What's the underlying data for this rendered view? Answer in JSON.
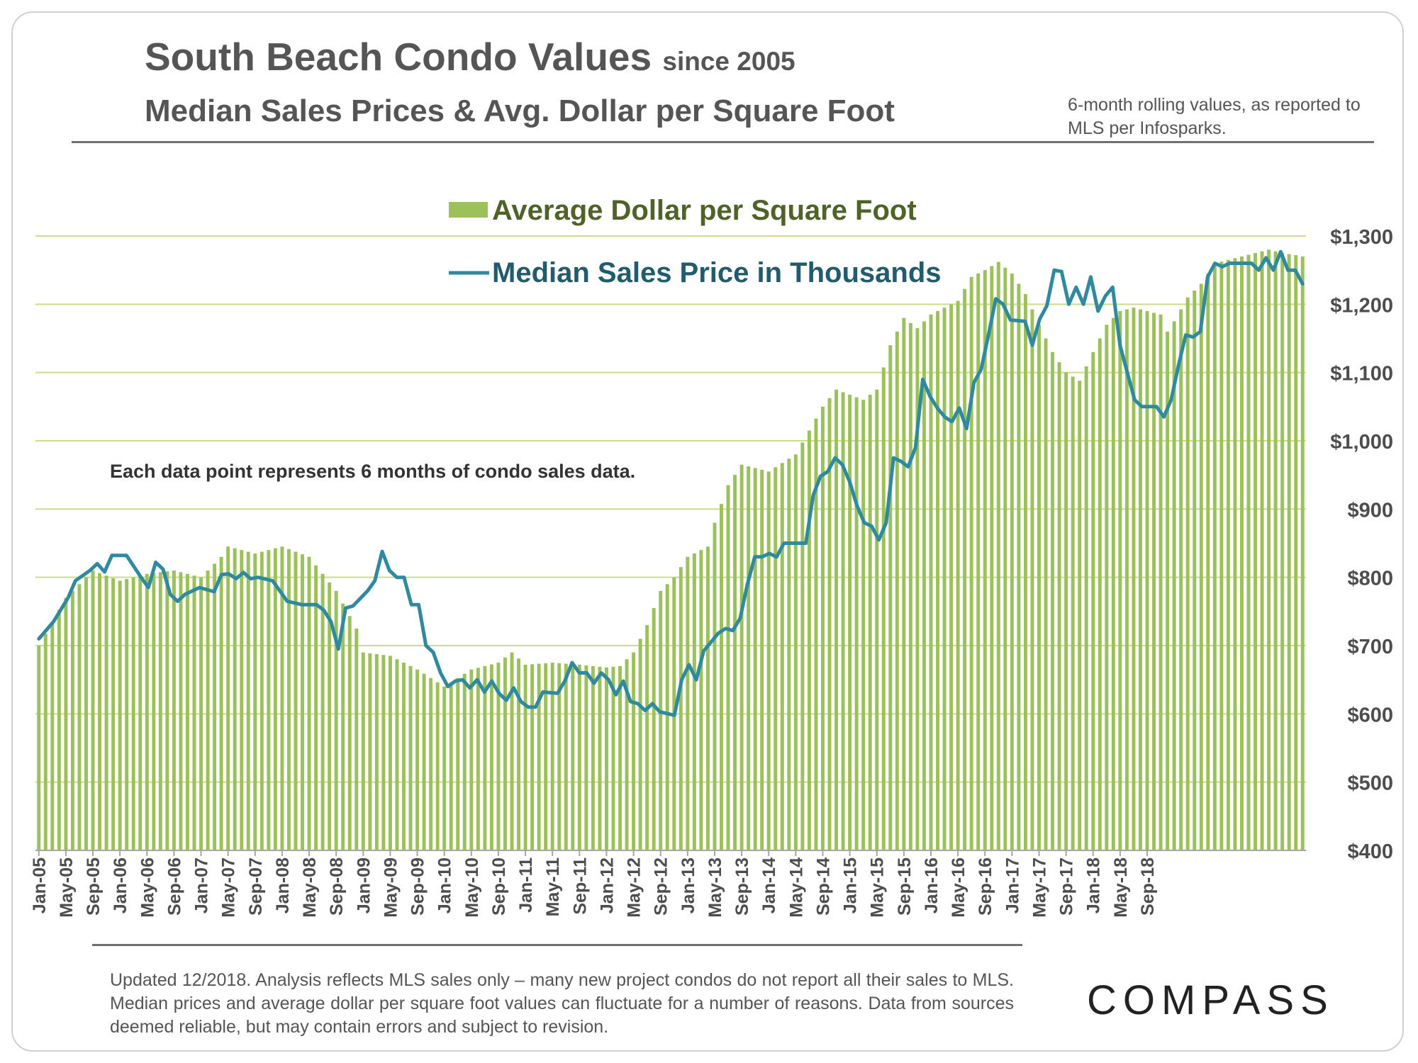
{
  "header": {
    "title_main": "South Beach Condo Values",
    "title_since": "since 2005",
    "subtitle": "Median Sales Prices & Avg. Dollar per Square Foot",
    "note": "6-month rolling values, as reported to MLS per Infosparks."
  },
  "annotation": "Each data point represents 6 months of condo sales data.",
  "footer": "Updated 12/2018. Analysis reflects MLS sales only – many new project condos do not report all their sales to MLS. Median prices and average dollar per square foot values can fluctuate for a number of reasons. Data from sources deemed reliable, but may contain errors and subject to revision.",
  "logo": "COMPASS",
  "colors": {
    "bar": "#9dc15a",
    "line": "#2f8aa0",
    "grid": "#c8de8e",
    "legend_bar_text": "#4f6228",
    "legend_line_text": "#215b6e"
  },
  "chart_data": {
    "type": "bar+line",
    "x_labels": [
      "Jan-05",
      "May-05",
      "Sep-05",
      "Jan-06",
      "May-06",
      "Sep-06",
      "Jan-07",
      "May-07",
      "Sep-07",
      "Jan-08",
      "May-08",
      "Sep-08",
      "Jan-09",
      "May-09",
      "Sep-09",
      "Jan-10",
      "May-10",
      "Sep-10",
      "Jan-11",
      "May-11",
      "Sep-11",
      "Jan-12",
      "May-12",
      "Sep-12",
      "Jan-13",
      "May-13",
      "Sep-13",
      "Jan-14",
      "May-14",
      "Sep-14",
      "Jan-15",
      "May-15",
      "Sep-15",
      "Jan-16",
      "May-16",
      "Sep-16",
      "Jan-17",
      "May-17",
      "Sep-17",
      "Jan-18",
      "May-18",
      "Sep-18"
    ],
    "x_label_interval_months": 4,
    "y_axis": {
      "min": 400,
      "max": 1300,
      "step": 100,
      "position": "right",
      "ticks": [
        "$400",
        "$500",
        "$600",
        "$700",
        "$800",
        "$900",
        "$1,000",
        "$1,100",
        "$1,200",
        "$1,300"
      ]
    },
    "series": [
      {
        "name": "Average Dollar per Square Foot",
        "kind": "bar",
        "anchors": [
          [
            0,
            700
          ],
          [
            4,
            770
          ],
          [
            8,
            810
          ],
          [
            12,
            795
          ],
          [
            16,
            805
          ],
          [
            20,
            810
          ],
          [
            24,
            800
          ],
          [
            27,
            830
          ],
          [
            28,
            845
          ],
          [
            32,
            835
          ],
          [
            36,
            845
          ],
          [
            40,
            830
          ],
          [
            44,
            780
          ],
          [
            47,
            725
          ],
          [
            48,
            690
          ],
          [
            52,
            685
          ],
          [
            56,
            665
          ],
          [
            60,
            640
          ],
          [
            64,
            665
          ],
          [
            68,
            675
          ],
          [
            70,
            690
          ],
          [
            72,
            672
          ],
          [
            76,
            675
          ],
          [
            80,
            672
          ],
          [
            84,
            668
          ],
          [
            86,
            670
          ],
          [
            88,
            690
          ],
          [
            90,
            730
          ],
          [
            92,
            780
          ],
          [
            94,
            800
          ],
          [
            96,
            830
          ],
          [
            99,
            845
          ],
          [
            100,
            880
          ],
          [
            102,
            935
          ],
          [
            104,
            965
          ],
          [
            108,
            955
          ],
          [
            112,
            980
          ],
          [
            116,
            1050
          ],
          [
            118,
            1075
          ],
          [
            122,
            1060
          ],
          [
            124,
            1075
          ],
          [
            126,
            1140
          ],
          [
            128,
            1180
          ],
          [
            130,
            1165
          ],
          [
            132,
            1185
          ],
          [
            136,
            1205
          ],
          [
            138,
            1240
          ],
          [
            140,
            1250
          ],
          [
            142,
            1262
          ],
          [
            144,
            1245
          ],
          [
            146,
            1215
          ],
          [
            148,
            1170
          ],
          [
            150,
            1130
          ],
          [
            152,
            1100
          ],
          [
            154,
            1088
          ],
          [
            156,
            1130
          ],
          [
            158,
            1170
          ],
          [
            160,
            1190
          ],
          [
            162,
            1195
          ],
          [
            166,
            1185
          ],
          [
            167,
            1160
          ],
          [
            168,
            1175
          ],
          [
            170,
            1210
          ],
          [
            172,
            1230
          ],
          [
            174,
            1260
          ],
          [
            176,
            1265
          ],
          [
            178,
            1270
          ],
          [
            180,
            1275
          ],
          [
            182,
            1280
          ],
          [
            184,
            1275
          ],
          [
            186,
            1272
          ],
          [
            187,
            1270
          ]
        ]
      },
      {
        "name": "Median Sales Price in Thousands",
        "kind": "line",
        "anchors": [
          [
            0,
            710
          ],
          [
            2,
            735
          ],
          [
            4,
            770
          ],
          [
            5,
            795
          ],
          [
            7,
            810
          ],
          [
            8,
            820
          ],
          [
            9,
            808
          ],
          [
            10,
            832
          ],
          [
            12,
            832
          ],
          [
            14,
            800
          ],
          [
            15,
            785
          ],
          [
            16,
            822
          ],
          [
            17,
            812
          ],
          [
            18,
            775
          ],
          [
            19,
            765
          ],
          [
            20,
            775
          ],
          [
            22,
            785
          ],
          [
            24,
            779
          ],
          [
            25,
            804
          ],
          [
            26,
            805
          ],
          [
            27,
            798
          ],
          [
            28,
            807
          ],
          [
            29,
            798
          ],
          [
            30,
            800
          ],
          [
            32,
            795
          ],
          [
            34,
            765
          ],
          [
            36,
            760
          ],
          [
            38,
            760
          ],
          [
            39,
            752
          ],
          [
            40,
            735
          ],
          [
            41,
            695
          ],
          [
            42,
            755
          ],
          [
            43,
            758
          ],
          [
            45,
            780
          ],
          [
            46,
            795
          ],
          [
            47,
            838
          ],
          [
            48,
            810
          ],
          [
            49,
            800
          ],
          [
            50,
            800
          ],
          [
            51,
            760
          ],
          [
            52,
            760
          ],
          [
            53,
            700
          ],
          [
            54,
            690
          ],
          [
            55,
            660
          ],
          [
            56,
            640
          ],
          [
            57,
            648
          ],
          [
            58,
            650
          ],
          [
            59,
            638
          ],
          [
            60,
            650
          ],
          [
            61,
            632
          ],
          [
            62,
            648
          ],
          [
            63,
            630
          ],
          [
            64,
            620
          ],
          [
            65,
            638
          ],
          [
            66,
            618
          ],
          [
            67,
            610
          ],
          [
            68,
            610
          ],
          [
            69,
            632
          ],
          [
            71,
            630
          ],
          [
            72,
            648
          ],
          [
            73,
            675
          ],
          [
            74,
            660
          ],
          [
            75,
            660
          ],
          [
            76,
            645
          ],
          [
            77,
            660
          ],
          [
            78,
            650
          ],
          [
            79,
            628
          ],
          [
            80,
            648
          ],
          [
            81,
            618
          ],
          [
            82,
            615
          ],
          [
            83,
            605
          ],
          [
            84,
            615
          ],
          [
            85,
            603
          ],
          [
            87,
            598
          ],
          [
            88,
            650
          ],
          [
            89,
            672
          ],
          [
            90,
            650
          ],
          [
            91,
            692
          ],
          [
            93,
            718
          ],
          [
            94,
            725
          ],
          [
            95,
            722
          ],
          [
            96,
            740
          ],
          [
            97,
            790
          ],
          [
            98,
            830
          ],
          [
            99,
            830
          ],
          [
            100,
            835
          ],
          [
            101,
            830
          ],
          [
            102,
            850
          ],
          [
            105,
            850
          ],
          [
            106,
            920
          ],
          [
            107,
            948
          ],
          [
            108,
            955
          ],
          [
            109,
            975
          ],
          [
            110,
            965
          ],
          [
            111,
            940
          ],
          [
            112,
            905
          ],
          [
            113,
            880
          ],
          [
            114,
            875
          ],
          [
            115,
            855
          ],
          [
            116,
            880
          ],
          [
            117,
            975
          ],
          [
            118,
            970
          ],
          [
            119,
            962
          ],
          [
            120,
            990
          ],
          [
            121,
            1090
          ],
          [
            122,
            1065
          ],
          [
            123,
            1048
          ],
          [
            124,
            1035
          ],
          [
            125,
            1028
          ],
          [
            126,
            1048
          ],
          [
            127,
            1018
          ],
          [
            128,
            1085
          ],
          [
            129,
            1105
          ],
          [
            130,
            1155
          ],
          [
            131,
            1208
          ],
          [
            132,
            1200
          ],
          [
            133,
            1177
          ],
          [
            135,
            1175
          ],
          [
            136,
            1140
          ],
          [
            137,
            1178
          ],
          [
            138,
            1198
          ],
          [
            139,
            1250
          ],
          [
            140,
            1248
          ],
          [
            141,
            1200
          ],
          [
            142,
            1225
          ],
          [
            143,
            1200
          ],
          [
            144,
            1240
          ],
          [
            145,
            1190
          ],
          [
            146,
            1212
          ],
          [
            147,
            1225
          ],
          [
            148,
            1140
          ],
          [
            149,
            1100
          ],
          [
            150,
            1060
          ],
          [
            151,
            1050
          ],
          [
            153,
            1050
          ],
          [
            154,
            1035
          ],
          [
            155,
            1060
          ],
          [
            156,
            1110
          ],
          [
            157,
            1155
          ],
          [
            158,
            1152
          ],
          [
            159,
            1160
          ],
          [
            160,
            1240
          ],
          [
            161,
            1260
          ],
          [
            162,
            1255
          ],
          [
            163,
            1260
          ],
          [
            166,
            1260
          ],
          [
            167,
            1250
          ],
          [
            168,
            1268
          ],
          [
            169,
            1250
          ],
          [
            170,
            1277
          ],
          [
            171,
            1250
          ],
          [
            172,
            1250
          ],
          [
            173,
            1230
          ]
        ]
      }
    ],
    "legend": [
      {
        "label": "Average Dollar per Square Foot",
        "marker": "bar"
      },
      {
        "label": "Median Sales Price in Thousands",
        "marker": "line"
      }
    ],
    "legend_position": "top-center",
    "grid": "horizontal"
  }
}
